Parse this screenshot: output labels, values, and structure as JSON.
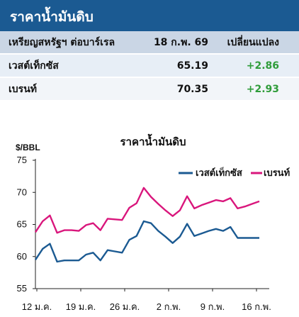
{
  "header": {
    "title": "ราคาน้ำมันดิบ"
  },
  "table": {
    "head": {
      "label": "เหรียญสหรัฐฯ ต่อบาร์เรล",
      "date": "18 ก.พ. 69",
      "change": "เปลี่ยนแปลง"
    },
    "rows": [
      {
        "name": "เวสต์เท็กซัส",
        "price": "65.19",
        "change": "+2.86"
      },
      {
        "name": "เบรนท์",
        "price": "70.35",
        "change": "+2.93"
      }
    ]
  },
  "colors": {
    "header_bg": "#1b5a92",
    "wti": "#1b5a92",
    "brent": "#d9167c",
    "change_positive": "#2f9c3a"
  },
  "chart_data": {
    "type": "line",
    "title": "ราคาน้ำมันดิบ",
    "ylabel": "$/BBL",
    "ylim": [
      55,
      75
    ],
    "yticks": [
      55,
      60,
      65,
      70,
      75
    ],
    "xtick_labels": [
      "12 ม.ค.",
      "19 ม.ค.",
      "26 ม.ค.",
      "2 ก.พ.",
      "9 ก.พ.",
      "16 ก.พ."
    ],
    "grid": false,
    "legend_position": "top-right",
    "series": [
      {
        "name": "เวสต์เท็กซัส",
        "color": "#1b5a92",
        "values": [
          59.5,
          61.2,
          62.0,
          59.2,
          59.4,
          59.4,
          59.4,
          60.3,
          60.6,
          59.4,
          61.0,
          60.8,
          60.6,
          62.6,
          63.2,
          65.5,
          65.2,
          64.0,
          63.1,
          62.1,
          63.1,
          65.1,
          63.2,
          63.6,
          64.0,
          64.3,
          64.0,
          64.6,
          62.9,
          62.9,
          62.9,
          62.9
        ]
      },
      {
        "name": "เบรนท์",
        "color": "#d9167c",
        "values": [
          63.8,
          65.5,
          66.4,
          63.7,
          64.1,
          64.1,
          64.0,
          64.9,
          65.2,
          64.1,
          65.9,
          65.8,
          65.7,
          67.6,
          68.3,
          70.7,
          69.3,
          68.2,
          67.2,
          66.3,
          67.2,
          69.4,
          67.5,
          68.0,
          68.4,
          68.8,
          68.6,
          69.1,
          67.5,
          67.8,
          68.2,
          68.6
        ]
      }
    ]
  }
}
